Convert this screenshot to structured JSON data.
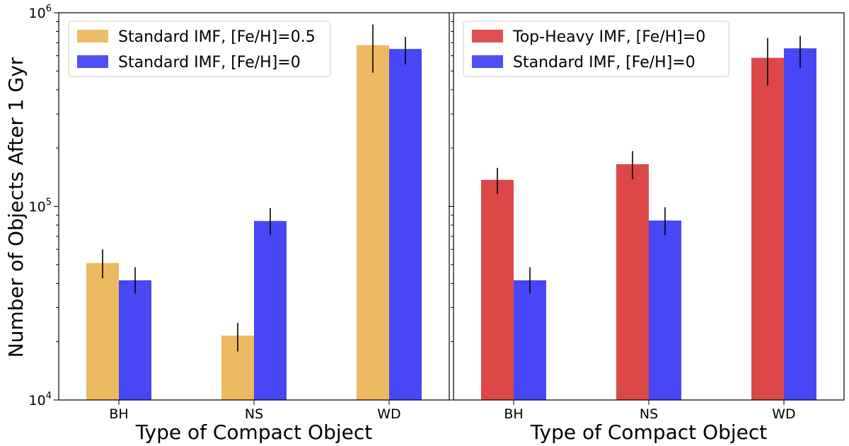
{
  "ylabel": "Number of Objects After 1 Gyr",
  "chart_data": [
    {
      "type": "bar",
      "y_scale": "log",
      "ylim": [
        10000,
        1000000
      ],
      "yticks": [
        {
          "value": 10000,
          "base": "10",
          "exp": "4"
        },
        {
          "value": 100000,
          "base": "10",
          "exp": "5"
        },
        {
          "value": 1000000,
          "base": "10",
          "exp": "6"
        }
      ],
      "categories": [
        "BH",
        "NS",
        "WD"
      ],
      "xlabel": "Type of Compact Object",
      "ylabel": "Number of Objects After 1 Gyr",
      "legend_position": "top-left",
      "series": [
        {
          "name": "Standard IMF, [Fe/H]=0.5",
          "color": "#ebb65b",
          "values": [
            51000,
            21500,
            680000
          ],
          "err_low": [
            42500,
            17800,
            490000
          ],
          "err_high": [
            60000,
            25000,
            870000
          ]
        },
        {
          "name": "Standard IMF, [Fe/H]=0",
          "color": "#4040f5",
          "values": [
            41500,
            84000,
            650000
          ],
          "err_low": [
            35500,
            71000,
            540000
          ],
          "err_high": [
            48500,
            98000,
            750000
          ]
        }
      ]
    },
    {
      "type": "bar",
      "y_scale": "log",
      "ylim": [
        10000,
        1000000
      ],
      "categories": [
        "BH",
        "NS",
        "WD"
      ],
      "xlabel": "Type of Compact Object",
      "legend_position": "top-left",
      "series": [
        {
          "name": "Top-Heavy IMF, [Fe/H]=0",
          "color": "#db4141",
          "values": [
            137000,
            165000,
            585000
          ],
          "err_low": [
            116000,
            138000,
            420000
          ],
          "err_high": [
            158000,
            193000,
            740000
          ]
        },
        {
          "name": "Standard IMF, [Fe/H]=0",
          "color": "#4040f5",
          "values": [
            41500,
            84500,
            655000
          ],
          "err_low": [
            35500,
            71000,
            520000
          ],
          "err_high": [
            48500,
            99000,
            760000
          ]
        }
      ]
    }
  ]
}
